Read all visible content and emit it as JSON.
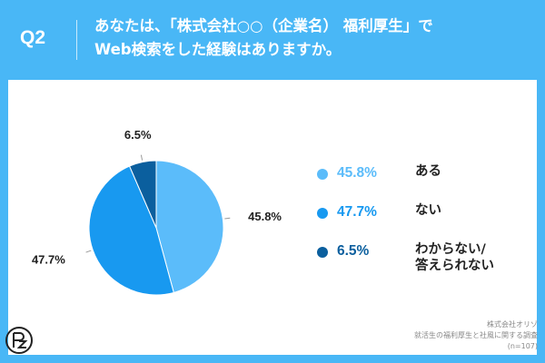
{
  "question": {
    "label": "Q2",
    "line1": "あなたは、「株式会社○○（企業名） 福利厚生」で",
    "line2": "Web検索をした経験はありますか。"
  },
  "chart_data": {
    "type": "pie",
    "title": "",
    "start": "top (12 o'clock), clockwise",
    "slices": [
      {
        "label": "ある",
        "value": 45.8,
        "pct_label": "45.8%",
        "color": "#5bbcfa"
      },
      {
        "label": "ない",
        "value": 47.7,
        "pct_label": "47.7%",
        "color": "#1899f0"
      },
      {
        "label": "わからない/答えられない",
        "value": 6.5,
        "pct_label": "6.5%",
        "color": "#0b5f9e"
      }
    ]
  },
  "legend": [
    {
      "pct": "45.8%",
      "label_lines": [
        "ある"
      ],
      "color": "#5bbcfa"
    },
    {
      "pct": "47.7%",
      "label_lines": [
        "ない"
      ],
      "color": "#1899f0"
    },
    {
      "pct": "6.5%",
      "label_lines": [
        "わからない/",
        "答えられない"
      ],
      "color": "#0b5f9e"
    }
  ],
  "credit": {
    "line1": "株式会社オリゾ",
    "line2": "就活生の福利厚生と社風に関する調査",
    "line3": "(n=107)"
  },
  "colors": {
    "background": "#49b7f6",
    "panel": "#ffffff",
    "logo": "#222222"
  },
  "logo_icon": "orizo-logo-icon"
}
